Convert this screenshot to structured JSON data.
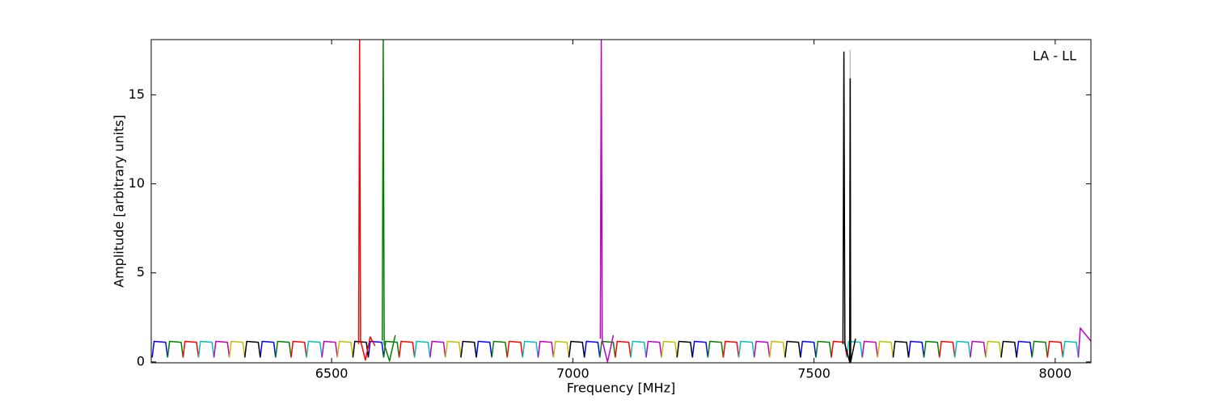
{
  "chart_data": {
    "type": "line",
    "xlabel": "Frequency [MHz]",
    "ylabel": "Amplitude [arbitrary units]",
    "annotation": "LA - LL",
    "xlim": [
      6126,
      8074
    ],
    "ylim": [
      -0.05,
      18.1
    ],
    "xticks": [
      6500,
      7000,
      7500,
      8000
    ],
    "yticks": [
      0,
      5,
      10,
      15
    ],
    "series": [
      {
        "color": "#c0c0c0",
        "x": [
          7574,
          7575,
          7576
        ],
        "values": [
          1.0,
          17.5,
          1.0
        ]
      },
      {
        "color": "#0000ff",
        "x": [
          6128,
          6132,
          6156,
          6160,
          null,
          6352,
          6356,
          6380,
          6384,
          null,
          6576,
          6580,
          6604,
          6608,
          null,
          6800,
          6804,
          6828,
          6832,
          null,
          7024,
          7028,
          7052,
          7056,
          null,
          7248,
          7252,
          7276,
          7280,
          null,
          7472,
          7476,
          7500,
          7504,
          null,
          7696,
          7700,
          7724,
          7728,
          null,
          7920,
          7924,
          7948,
          7952
        ],
        "values": [
          0.25,
          1.15,
          1.1,
          0.25,
          null,
          0.25,
          1.15,
          1.1,
          0.25,
          null,
          0.25,
          1.15,
          1.1,
          0.25,
          null,
          0.25,
          1.15,
          1.1,
          0.25,
          null,
          0.25,
          1.15,
          1.1,
          0.25,
          null,
          0.25,
          1.15,
          1.1,
          0.25,
          null,
          0.25,
          1.15,
          1.1,
          0.25,
          null,
          0.25,
          1.15,
          1.1,
          0.25,
          null,
          0.25,
          1.15,
          1.1,
          0.25
        ]
      },
      {
        "color": "#008000",
        "x": [
          6160,
          6164,
          6188,
          6192,
          null,
          6384,
          6388,
          6412,
          6416,
          null,
          6608,
          6612,
          6636,
          6640,
          null,
          6832,
          6836,
          6860,
          6864,
          null,
          7056,
          7060,
          7084,
          7088,
          null,
          7280,
          7284,
          7308,
          7312,
          null,
          7504,
          7508,
          7532,
          7536,
          null,
          7728,
          7732,
          7756,
          7760,
          null,
          7952,
          7956,
          7980,
          7984
        ],
        "values": [
          0.25,
          1.15,
          1.1,
          0.25,
          null,
          0.25,
          1.15,
          1.1,
          0.25,
          null,
          0.25,
          1.15,
          1.1,
          0.25,
          null,
          0.25,
          1.15,
          1.1,
          0.25,
          null,
          0.25,
          1.15,
          1.1,
          0.25,
          null,
          0.25,
          1.15,
          1.1,
          0.25,
          null,
          0.25,
          1.15,
          1.1,
          0.25,
          null,
          0.25,
          1.15,
          1.1,
          0.25,
          null,
          0.25,
          1.15,
          1.1,
          0.25
        ]
      },
      {
        "color": "#ff0000",
        "x": [
          6192,
          6196,
          6220,
          6224,
          null,
          6416,
          6420,
          6444,
          6448,
          null,
          6640,
          6644,
          6668,
          6672,
          null,
          6864,
          6868,
          6892,
          6896,
          null,
          7088,
          7092,
          7116,
          7120,
          null,
          7312,
          7316,
          7340,
          7344,
          null,
          7536,
          7540,
          7564,
          7568,
          null,
          7760,
          7764,
          7788,
          7792,
          null,
          7984,
          7988,
          8012,
          8016
        ],
        "values": [
          0.25,
          1.15,
          1.1,
          0.25,
          null,
          0.25,
          1.15,
          1.1,
          0.25,
          null,
          0.25,
          1.15,
          1.1,
          0.25,
          null,
          0.25,
          1.15,
          1.1,
          0.25,
          null,
          0.25,
          1.15,
          1.1,
          0.25,
          null,
          0.25,
          1.15,
          1.1,
          0.25,
          null,
          0.25,
          1.15,
          1.1,
          0.25,
          null,
          0.25,
          1.15,
          1.1,
          0.25,
          null,
          0.25,
          1.15,
          1.1,
          0.25
        ]
      },
      {
        "color": "#00bfbf",
        "x": [
          6224,
          6228,
          6252,
          6256,
          null,
          6448,
          6452,
          6476,
          6480,
          null,
          6672,
          6676,
          6700,
          6704,
          null,
          6896,
          6900,
          6924,
          6928,
          null,
          7120,
          7124,
          7148,
          7152,
          null,
          7344,
          7348,
          7372,
          7376,
          null,
          7568,
          7572,
          7596,
          7600,
          null,
          7792,
          7796,
          7820,
          7824,
          null,
          8016,
          8020,
          8044,
          8048
        ],
        "values": [
          0.25,
          1.15,
          1.1,
          0.25,
          null,
          0.25,
          1.15,
          1.1,
          0.25,
          null,
          0.25,
          1.15,
          1.1,
          0.25,
          null,
          0.25,
          1.15,
          1.1,
          0.25,
          null,
          0.25,
          1.15,
          1.1,
          0.25,
          null,
          0.25,
          1.15,
          1.1,
          0.25,
          null,
          0.25,
          1.15,
          1.1,
          0.25,
          null,
          0.25,
          1.15,
          1.1,
          0.25,
          null,
          0.25,
          1.15,
          1.1,
          0.25
        ]
      },
      {
        "color": "#bf00bf",
        "x": [
          6256,
          6260,
          6284,
          6288,
          null,
          6480,
          6484,
          6508,
          6512,
          null,
          6704,
          6708,
          6732,
          6736,
          null,
          6928,
          6932,
          6956,
          6960,
          null,
          7152,
          7156,
          7180,
          7184,
          null,
          7376,
          7380,
          7404,
          7408,
          null,
          7600,
          7604,
          7628,
          7632,
          null,
          7824,
          7828,
          7852,
          7856,
          null,
          8048,
          8052,
          8076,
          8080
        ],
        "values": [
          0.25,
          1.15,
          1.1,
          0.25,
          null,
          0.25,
          1.15,
          1.1,
          0.25,
          null,
          0.25,
          1.15,
          1.1,
          0.25,
          null,
          0.25,
          1.15,
          1.1,
          0.25,
          null,
          0.25,
          1.15,
          1.1,
          0.25,
          null,
          0.25,
          1.15,
          1.1,
          0.25,
          null,
          0.25,
          1.15,
          1.1,
          0.25,
          null,
          0.25,
          1.15,
          1.1,
          0.25,
          null,
          0.25,
          1.9,
          1.1,
          0.25
        ]
      },
      {
        "color": "#bfbf00",
        "x": [
          6288,
          6292,
          6316,
          6320,
          null,
          6512,
          6516,
          6540,
          6544,
          null,
          6736,
          6740,
          6764,
          6768,
          null,
          6960,
          6964,
          6988,
          6992,
          null,
          7184,
          7188,
          7212,
          7216,
          null,
          7408,
          7412,
          7436,
          7440,
          null,
          7632,
          7636,
          7660,
          7664,
          null,
          7856,
          7860,
          7884,
          7888
        ],
        "values": [
          0.25,
          1.15,
          1.1,
          0.25,
          null,
          0.25,
          1.15,
          1.1,
          0.25,
          null,
          0.25,
          1.15,
          1.1,
          0.25,
          null,
          0.25,
          1.15,
          1.1,
          0.25,
          null,
          0.25,
          1.15,
          1.1,
          0.25,
          null,
          0.25,
          1.15,
          1.1,
          0.25,
          null,
          0.25,
          1.15,
          1.1,
          0.25,
          null,
          0.25,
          1.15,
          1.1,
          0.25
        ]
      },
      {
        "color": "#000000",
        "x": [
          6320,
          6324,
          6348,
          6352,
          null,
          6544,
          6548,
          6572,
          6576,
          null,
          6768,
          6772,
          6796,
          6800,
          null,
          6992,
          6996,
          7020,
          7024,
          null,
          7216,
          7220,
          7244,
          7248,
          null,
          7440,
          7444,
          7468,
          7472,
          null,
          7664,
          7668,
          7692,
          7696,
          null,
          7888,
          7892,
          7916,
          7920
        ],
        "values": [
          0.25,
          1.15,
          1.1,
          0.25,
          null,
          0.25,
          1.15,
          1.1,
          0.25,
          null,
          0.25,
          1.15,
          1.1,
          0.25,
          null,
          0.25,
          1.15,
          1.1,
          0.25,
          null,
          0.25,
          1.15,
          1.1,
          0.25,
          null,
          0.25,
          1.15,
          1.1,
          0.25,
          null,
          0.25,
          1.15,
          1.1,
          0.25,
          null,
          0.25,
          1.15,
          1.1,
          0.25
        ]
      },
      {
        "color": "#ff0000",
        "x": [
          6556,
          6558,
          6560,
          6570,
          6580,
          6590
        ],
        "values": [
          1.0,
          18.1,
          1.2,
          0.1,
          1.4,
          0.9
        ]
      },
      {
        "color": "#008000",
        "x": [
          6605,
          6607,
          6609,
          6620,
          6632
        ],
        "values": [
          1.2,
          18.1,
          1.0,
          0.05,
          1.5
        ]
      },
      {
        "color": "#bf00bf",
        "x": [
          7057,
          7059,
          7061,
          7072,
          7084
        ],
        "values": [
          1.3,
          18.1,
          1.2,
          0.0,
          1.5
        ]
      },
      {
        "color": "#000000",
        "x": [
          7560,
          7562,
          7564,
          7574,
          7575,
          7576,
          7586
        ],
        "values": [
          1.0,
          17.4,
          1.0,
          0.0,
          15.9,
          0.0,
          1.3
        ]
      }
    ]
  }
}
